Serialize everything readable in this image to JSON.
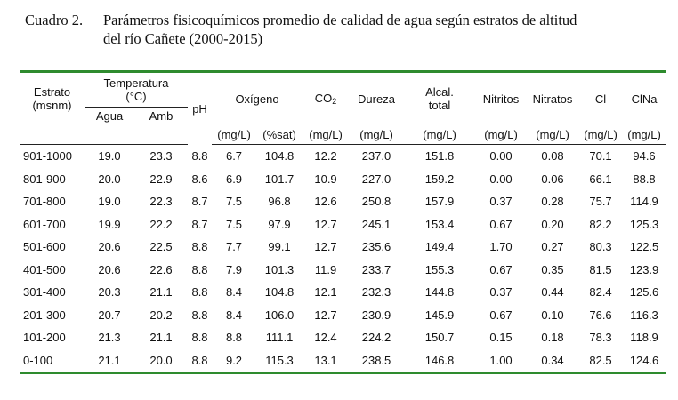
{
  "caption": {
    "label": "Cuadro 2.",
    "line1": "Parámetros fisicoquímicos promedio de calidad de agua según estratos de altitud",
    "line2": "del río Cañete (2000-2015)"
  },
  "headers": {
    "estrato": "Estrato",
    "msnm": "(msnm)",
    "temperatura": "Temperatura",
    "temp_unit": "(°C)",
    "agua": "Agua",
    "amb": "Amb",
    "ph": "pH",
    "oxigeno": "Oxígeno",
    "co2_base": "CO",
    "co2_sub": "2",
    "dureza": "Dureza",
    "alcal_1": "Alcal.",
    "alcal_2": "total",
    "nitritos": "Nitritos",
    "nitratos": "Nitratos",
    "cl": "Cl",
    "clna": "ClNa",
    "u_mgl": "(mg/L)",
    "u_sat": "(%sat)"
  },
  "rows": [
    [
      "901-1000",
      "19.0",
      "23.3",
      "8.8",
      "6.7",
      "104.8",
      "12.2",
      "237.0",
      "151.8",
      "0.00",
      "0.08",
      "70.1",
      "94.6"
    ],
    [
      "801-900",
      "20.0",
      "22.9",
      "8.6",
      "6.9",
      "101.7",
      "10.9",
      "227.0",
      "159.2",
      "0.00",
      "0.06",
      "66.1",
      "88.8"
    ],
    [
      "701-800",
      "19.0",
      "22.3",
      "8.7",
      "7.5",
      "96.8",
      "12.6",
      "250.8",
      "157.9",
      "0.37",
      "0.28",
      "75.7",
      "114.9"
    ],
    [
      "601-700",
      "19.9",
      "22.2",
      "8.7",
      "7.5",
      "97.9",
      "12.7",
      "245.1",
      "153.4",
      "0.67",
      "0.20",
      "82.2",
      "125.3"
    ],
    [
      "501-600",
      "20.6",
      "22.5",
      "8.8",
      "7.7",
      "99.1",
      "12.7",
      "235.6",
      "149.4",
      "1.70",
      "0.27",
      "80.3",
      "122.5"
    ],
    [
      "401-500",
      "20.6",
      "22.6",
      "8.8",
      "7.9",
      "101.3",
      "11.9",
      "233.7",
      "155.3",
      "0.67",
      "0.35",
      "81.5",
      "123.9"
    ],
    [
      "301-400",
      "20.3",
      "21.1",
      "8.8",
      "8.4",
      "104.8",
      "12.1",
      "232.3",
      "144.8",
      "0.37",
      "0.44",
      "82.4",
      "125.6"
    ],
    [
      "201-300",
      "20.7",
      "20.2",
      "8.8",
      "8.4",
      "106.0",
      "12.7",
      "230.9",
      "145.9",
      "0.67",
      "0.10",
      "76.6",
      "116.3"
    ],
    [
      "101-200",
      "21.3",
      "21.1",
      "8.8",
      "8.8",
      "111.1",
      "12.4",
      "224.2",
      "150.7",
      "0.15",
      "0.18",
      "78.3",
      "118.9"
    ],
    [
      "0-100",
      "21.1",
      "20.0",
      "8.8",
      "9.2",
      "115.3",
      "13.1",
      "238.5",
      "146.8",
      "1.00",
      "0.34",
      "82.5",
      "124.6"
    ]
  ]
}
